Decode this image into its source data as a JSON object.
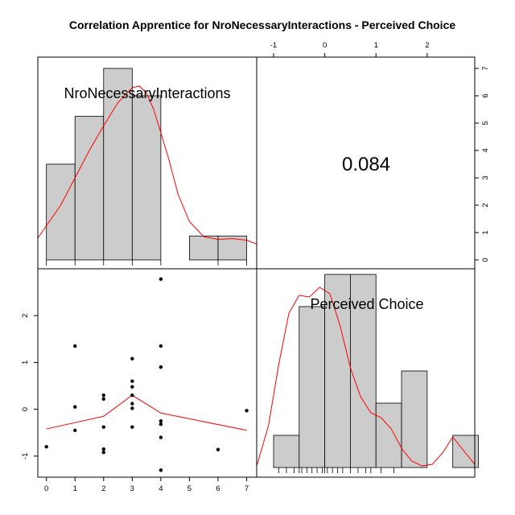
{
  "chart_data": {
    "type": "scatter",
    "title": "Correlation Apprentice for NroNecessaryInteractions - Perceived Choice",
    "variables": [
      "NroNecessaryInteractions",
      "Perceived Choice"
    ],
    "correlation_label": "0.084",
    "colors": {
      "bar_fill": "#cccccc",
      "density_line": "#ff0000",
      "loess_line": "#ff0000",
      "points": "#000000"
    },
    "axes": {
      "x1": {
        "ticks": [
          0,
          1,
          2,
          3,
          4,
          5,
          6,
          7
        ],
        "range": [
          -0.3,
          7.35
        ]
      },
      "x2": {
        "ticks": [
          -1,
          0,
          1,
          2
        ],
        "range": [
          -1.33,
          2.93
        ]
      },
      "y_left": {
        "ticks": [
          -1,
          0,
          1,
          2
        ],
        "range": [
          -1.45,
          3.0
        ]
      },
      "y_right": {
        "ticks": [
          0,
          1,
          2,
          3,
          4,
          5,
          6,
          7
        ]
      }
    },
    "histogram_x1": {
      "bins": [
        [
          0,
          1
        ],
        [
          1,
          2
        ],
        [
          2,
          3
        ],
        [
          3,
          4
        ],
        [
          4,
          5
        ],
        [
          5,
          6
        ],
        [
          6,
          7
        ]
      ],
      "counts": [
        3.5,
        5.25,
        7,
        6,
        0,
        0.875,
        0.875
      ],
      "rug": [
        0,
        1,
        2,
        3,
        4,
        6,
        7
      ],
      "density": [
        [
          -0.3,
          0.8
        ],
        [
          0.0,
          1.25
        ],
        [
          0.5,
          2.0
        ],
        [
          1.0,
          3.0
        ],
        [
          1.5,
          4.0
        ],
        [
          2.0,
          4.9
        ],
        [
          2.5,
          5.75
        ],
        [
          3.0,
          6.3
        ],
        [
          3.25,
          6.35
        ],
        [
          3.5,
          6.1
        ],
        [
          3.75,
          5.5
        ],
        [
          4.0,
          4.65
        ],
        [
          4.3,
          3.6
        ],
        [
          4.6,
          2.4
        ],
        [
          5.0,
          1.4
        ],
        [
          5.5,
          0.85
        ],
        [
          6.0,
          0.75
        ],
        [
          6.5,
          0.78
        ],
        [
          7.0,
          0.72
        ],
        [
          7.35,
          0.58
        ]
      ]
    },
    "histogram_x2": {
      "bins": [
        [
          -1.0,
          -0.5
        ],
        [
          -0.5,
          0.0
        ],
        [
          0.0,
          0.5
        ],
        [
          0.5,
          1.0
        ],
        [
          1.0,
          1.5
        ],
        [
          1.5,
          2.0
        ],
        [
          2.0,
          2.5
        ],
        [
          2.5,
          3.0
        ]
      ],
      "counts": [
        1,
        5,
        6,
        6,
        2,
        3,
        0,
        1
      ],
      "rug": [
        -0.9,
        -0.75,
        -0.6,
        -0.5,
        -0.45,
        -0.35,
        -0.25,
        -0.15,
        -0.05,
        0.0,
        0.05,
        0.15,
        0.25,
        0.35,
        0.5,
        0.65,
        0.8,
        0.9,
        1.1,
        1.35
      ],
      "density": [
        [
          -1.33,
          0.05
        ],
        [
          -1.1,
          1.3
        ],
        [
          -0.9,
          3.2
        ],
        [
          -0.7,
          4.8
        ],
        [
          -0.5,
          5.35
        ],
        [
          -0.3,
          5.3
        ],
        [
          -0.1,
          5.6
        ],
        [
          0.1,
          5.4
        ],
        [
          0.3,
          4.4
        ],
        [
          0.5,
          3.1
        ],
        [
          0.7,
          2.2
        ],
        [
          0.9,
          1.7
        ],
        [
          1.1,
          1.55
        ],
        [
          1.3,
          1.2
        ],
        [
          1.5,
          0.6
        ],
        [
          1.7,
          0.2
        ],
        [
          1.9,
          0.05
        ],
        [
          2.1,
          0.1
        ],
        [
          2.3,
          0.45
        ],
        [
          2.5,
          0.95
        ],
        [
          2.7,
          0.55
        ],
        [
          2.93,
          0.1
        ]
      ]
    },
    "scatter": {
      "points": [
        [
          0,
          -0.8
        ],
        [
          1,
          1.35
        ],
        [
          1,
          0.05
        ],
        [
          1,
          -0.45
        ],
        [
          2,
          0.3
        ],
        [
          2,
          0.22
        ],
        [
          2,
          -0.38
        ],
        [
          2,
          -0.85
        ],
        [
          2,
          -0.92
        ],
        [
          3,
          1.08
        ],
        [
          3,
          0.6
        ],
        [
          3,
          0.48
        ],
        [
          3,
          0.3
        ],
        [
          3,
          0.12
        ],
        [
          3,
          0.02
        ],
        [
          3,
          -0.38
        ],
        [
          4,
          2.78
        ],
        [
          4,
          1.35
        ],
        [
          4,
          0.9
        ],
        [
          4,
          -0.25
        ],
        [
          4,
          -0.32
        ],
        [
          4,
          -0.6
        ],
        [
          4,
          -1.3
        ],
        [
          6,
          -0.86
        ],
        [
          7,
          -0.03
        ]
      ],
      "loess": [
        [
          0,
          -0.42
        ],
        [
          2,
          -0.15
        ],
        [
          3,
          0.3
        ],
        [
          4,
          -0.08
        ],
        [
          7,
          -0.45
        ]
      ]
    }
  }
}
